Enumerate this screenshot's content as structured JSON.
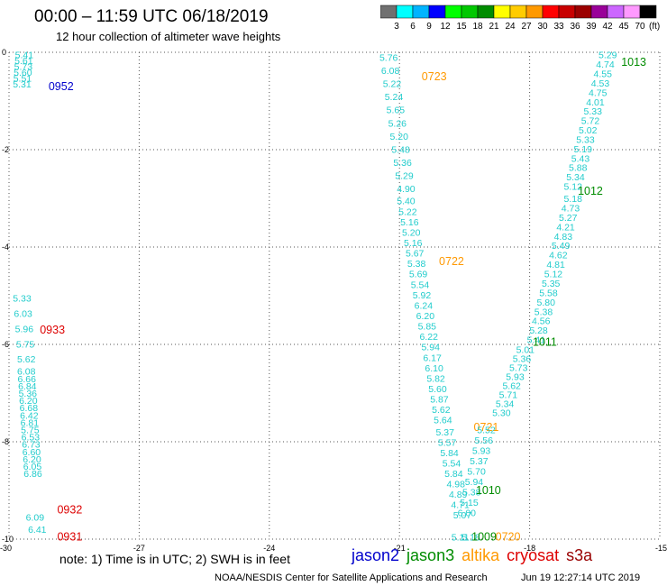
{
  "header": {
    "title": "00:00 – 11:59 UTC 06/18/2019",
    "subtitle": "12 hour collection of altimeter wave heights"
  },
  "colorbar": {
    "unit": "(ft)",
    "colors": [
      "#707070",
      "#00ffff",
      "#00b4ff",
      "#0000ff",
      "#00ff00",
      "#00c800",
      "#008c00",
      "#ffff00",
      "#ffcc00",
      "#ff9900",
      "#ff0000",
      "#c80000",
      "#9b0000",
      "#990099",
      "#cc66ff",
      "#ff99ff",
      "#000000"
    ],
    "labels": [
      "3",
      "6",
      "9",
      "12",
      "15",
      "18",
      "21",
      "24",
      "27",
      "30",
      "33",
      "36",
      "39",
      "42",
      "45",
      "70"
    ]
  },
  "footer": {
    "note": "note: 1) Time is in UTC; 2) SWH is in feet",
    "credit": "NOAA/NESDIS Center for Satellite Applications and Research",
    "timestamp": "Jun 19 12:27:14 UTC 2019"
  },
  "legend": [
    {
      "name": "jason2",
      "color": "#0000cc"
    },
    {
      "name": "jason3",
      "color": "#008c00"
    },
    {
      "name": "altika",
      "color": "#ff9900"
    },
    {
      "name": "cryosat",
      "color": "#dd0000"
    },
    {
      "name": "s3a",
      "color": "#990000"
    }
  ],
  "chart_data": {
    "type": "scatter",
    "xlim": [
      -30,
      -15
    ],
    "ylim": [
      -10,
      0
    ],
    "x_ticks": [
      -30,
      -27,
      -24,
      -21,
      -18,
      -15
    ],
    "y_ticks": [
      0,
      -2,
      -4,
      -6,
      -8,
      -10
    ],
    "grid": true,
    "value_color": "#22cccc",
    "tracks": [
      {
        "satellite": "jason2",
        "label": "0952",
        "label_x": -28.8,
        "label_y": -0.7,
        "x0": -29.65,
        "y0": -0.05,
        "x1": -29.7,
        "y1": -0.65,
        "values": [
          "5.41",
          "5.61",
          "5.73",
          "5.60",
          "5.51",
          "5.31"
        ]
      },
      {
        "satellite": "cryosat",
        "label": "0933",
        "label_x": -29,
        "label_y": -5.7,
        "x0": -29.7,
        "y0": -5.05,
        "x1": -29.6,
        "y1": -6.3,
        "values": [
          "5.33",
          "6.03",
          "5.96",
          "5.75",
          "5.62"
        ]
      },
      {
        "satellite": "cryosat",
        "label": "0932",
        "label_x": -28.6,
        "label_y": -9.4,
        "x0": -29.6,
        "y0": -6.55,
        "x1": -29.45,
        "y1": -8.65,
        "values": [
          "6.08",
          "6.66",
          "6.84",
          "5.36",
          "6.20",
          "6.68",
          "6.42",
          "6.81",
          "5.75",
          "6.53",
          "6.73",
          "6.60",
          "6.20",
          "6.05",
          "6.86"
        ]
      },
      {
        "satellite": "cryosat",
        "label": "0931",
        "label_x": -28.6,
        "label_y": -9.95,
        "x0": -29.4,
        "y0": -9.55,
        "x1": -29.35,
        "y1": -9.8,
        "values": [
          "6.09",
          "6.41"
        ]
      },
      {
        "satellite": "altika",
        "label": "0723",
        "label_x": -20.2,
        "label_y": -0.5,
        "x0": -21.25,
        "y0": -0.1,
        "x1": -20.85,
        "y1": -2.8,
        "values": [
          "5.76",
          "6.08",
          "5.22",
          "5.24",
          "5.65",
          "5.26",
          "5.20",
          "5.48",
          "5.36",
          "5.29",
          "4.90"
        ]
      },
      {
        "satellite": "altika",
        "label": "0722",
        "label_x": -19.8,
        "label_y": -4.3,
        "x0": -20.85,
        "y0": -3.05,
        "x1": -20.0,
        "y1": -7.55,
        "values": [
          "5.40",
          "5.22",
          "5.16",
          "5.20",
          "5.16",
          "5.67",
          "5.38",
          "5.69",
          "5.54",
          "5.92",
          "6.24",
          "6.20",
          "5.85",
          "6.22",
          "5.94",
          "6.17",
          "6.10",
          "5.82",
          "5.60",
          "5.87",
          "5.62",
          "5.64"
        ]
      },
      {
        "satellite": "altika",
        "label": "0721",
        "label_x": -19.0,
        "label_y": -7.7,
        "x0": -19.95,
        "y0": -7.8,
        "x1": -19.55,
        "y1": -9.5,
        "values": [
          "5.37",
          "5.57",
          "5.84",
          "5.54",
          "5.84",
          "4.98",
          "4.89",
          "4.71",
          "5.07"
        ]
      },
      {
        "satellite": "altika",
        "label": "0720",
        "label_x": -18.5,
        "label_y": -9.95,
        "x0": -19.35,
        "y0": -9.95,
        "x1": -19.35,
        "y1": -9.95,
        "values": [
          "5.18"
        ]
      },
      {
        "satellite": "jason3",
        "label": "1013",
        "label_x": -15.6,
        "label_y": -0.2,
        "x0": -16.2,
        "y0": -0.05,
        "x1": -17.0,
        "y1": -2.75,
        "values": [
          "5.29",
          "4.74",
          "4.55",
          "4.53",
          "4.75",
          "4.01",
          "5.33",
          "5.72",
          "5.02",
          "5.33",
          "5.19",
          "5.43",
          "5.88",
          "5.34",
          "5.12"
        ]
      },
      {
        "satellite": "jason3",
        "label": "1012",
        "label_x": -16.6,
        "label_y": -2.85,
        "x0": -17.0,
        "y0": -3.0,
        "x1": -17.85,
        "y1": -5.9,
        "values": [
          "5.18",
          "4.73",
          "5.27",
          "4.21",
          "4.83",
          "5.49",
          "4.62",
          "4.81",
          "5.12",
          "5.35",
          "5.58",
          "5.80",
          "5.38",
          "4.56",
          "5.28",
          "5.41"
        ]
      },
      {
        "satellite": "jason3",
        "label": "1011",
        "label_x": -17.65,
        "label_y": -5.95,
        "x0": -18.1,
        "y0": -6.1,
        "x1": -18.65,
        "y1": -7.4,
        "values": [
          "5.01",
          "5.36",
          "5.73",
          "5.93",
          "5.62",
          "5.71",
          "5.34",
          "5.30"
        ]
      },
      {
        "satellite": "jason3",
        "label": "1010",
        "label_x": -18.95,
        "label_y": -9.0,
        "x0": -19.0,
        "y0": -7.75,
        "x1": -19.45,
        "y1": -9.45,
        "values": [
          "5.52",
          "5.56",
          "5.93",
          "5.37",
          "5.70",
          "5.94",
          "5.38",
          "5.15",
          "6.00"
        ]
      },
      {
        "satellite": "jason3",
        "label": "1009",
        "label_x": -19.05,
        "label_y": -9.95,
        "x0": -19.6,
        "y0": -9.95,
        "x1": -19.6,
        "y1": -9.95,
        "values": [
          "5.11"
        ]
      }
    ]
  }
}
